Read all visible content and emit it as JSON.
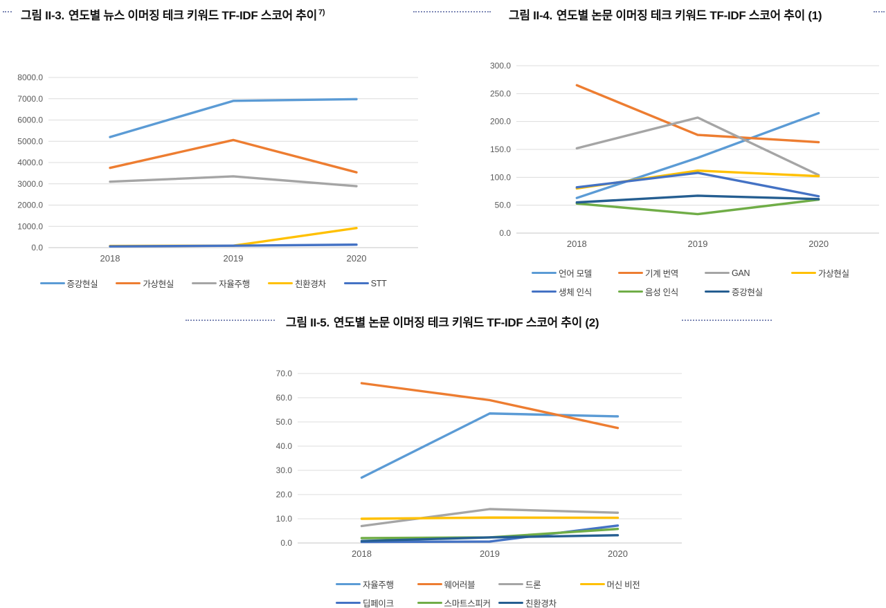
{
  "figures": [
    {
      "label": "그림 II-3.",
      "title": "연도별 뉴스 이머징 테크 키워드 TF-IDF 스코어 추이",
      "superscript": "7)"
    },
    {
      "label": "그림 II-4.",
      "title": "연도별 논문 이머징 테크 키워드 TF-IDF 스코어 추이 (1)",
      "superscript": ""
    },
    {
      "label": "그림 II-5.",
      "title": "연도별 논문 이머징 테크 키워드 TF-IDF 스코어 추이 (2)",
      "superscript": ""
    }
  ],
  "chart_data": [
    {
      "type": "line",
      "title": "연도별 뉴스 이머징 테크 키워드 TF-IDF 스코어 추이",
      "x": [
        "2018",
        "2019",
        "2020"
      ],
      "xlabel": "",
      "ylabel": "",
      "ylim": [
        0,
        8000
      ],
      "yticks": [
        0,
        1000,
        2000,
        3000,
        4000,
        5000,
        6000,
        7000,
        8000
      ],
      "grid": true,
      "legend_position": "bottom",
      "series": [
        {
          "name": "증강현실",
          "color": "#5B9BD5",
          "values": [
            5200,
            6900,
            6980
          ]
        },
        {
          "name": "가상현실",
          "color": "#ED7D31",
          "values": [
            3750,
            5060,
            3540
          ]
        },
        {
          "name": "자율주행",
          "color": "#A5A5A5",
          "values": [
            3100,
            3350,
            2890
          ]
        },
        {
          "name": "친환경차",
          "color": "#FFC000",
          "values": [
            80,
            90,
            920
          ]
        },
        {
          "name": "STT",
          "color": "#4472C4",
          "values": [
            60,
            90,
            140
          ]
        }
      ]
    },
    {
      "type": "line",
      "title": "연도별 논문 이머징 테크 키워드 TF-IDF 스코어 추이 (1)",
      "x": [
        "2018",
        "2019",
        "2020"
      ],
      "xlabel": "",
      "ylabel": "",
      "ylim": [
        0,
        300
      ],
      "yticks": [
        0,
        50,
        100,
        150,
        200,
        250,
        300
      ],
      "grid": true,
      "legend_position": "bottom",
      "series": [
        {
          "name": "언어 모델",
          "color": "#5B9BD5",
          "values": [
            63,
            135,
            215
          ]
        },
        {
          "name": "기계 번역",
          "color": "#ED7D31",
          "values": [
            265,
            176,
            163
          ]
        },
        {
          "name": "GAN",
          "color": "#A5A5A5",
          "values": [
            152,
            207,
            104
          ]
        },
        {
          "name": "가상현실",
          "color": "#FFC000",
          "values": [
            80,
            112,
            102
          ]
        },
        {
          "name": "생체 인식",
          "color": "#4472C4",
          "values": [
            82,
            108,
            66
          ]
        },
        {
          "name": "음성 인식",
          "color": "#70AD47",
          "values": [
            53,
            34,
            60
          ]
        },
        {
          "name": "증강현실",
          "color": "#255E91",
          "values": [
            55,
            67,
            61
          ]
        }
      ]
    },
    {
      "type": "line",
      "title": "연도별 논문 이머징 테크 키워드 TF-IDF 스코어 추이 (2)",
      "x": [
        "2018",
        "2019",
        "2020"
      ],
      "xlabel": "",
      "ylabel": "",
      "ylim": [
        0,
        70
      ],
      "yticks": [
        0,
        10,
        20,
        30,
        40,
        50,
        60,
        70
      ],
      "grid": true,
      "legend_position": "bottom",
      "series": [
        {
          "name": "자율주행",
          "color": "#5B9BD5",
          "values": [
            27,
            53.5,
            52.3
          ]
        },
        {
          "name": "웨어러블",
          "color": "#ED7D31",
          "values": [
            66,
            59,
            47.5
          ]
        },
        {
          "name": "드론",
          "color": "#A5A5A5",
          "values": [
            7,
            14,
            12.5
          ]
        },
        {
          "name": "머신 비전",
          "color": "#FFC000",
          "values": [
            10,
            10.5,
            10.4
          ]
        },
        {
          "name": "딥페이크",
          "color": "#4472C4",
          "values": [
            0.4,
            0.6,
            7.2
          ]
        },
        {
          "name": "스마트스피커",
          "color": "#70AD47",
          "values": [
            2.0,
            2.3,
            5.8
          ]
        },
        {
          "name": "친환경차",
          "color": "#255E91",
          "values": [
            0.8,
            2.3,
            3.2
          ]
        }
      ]
    }
  ]
}
